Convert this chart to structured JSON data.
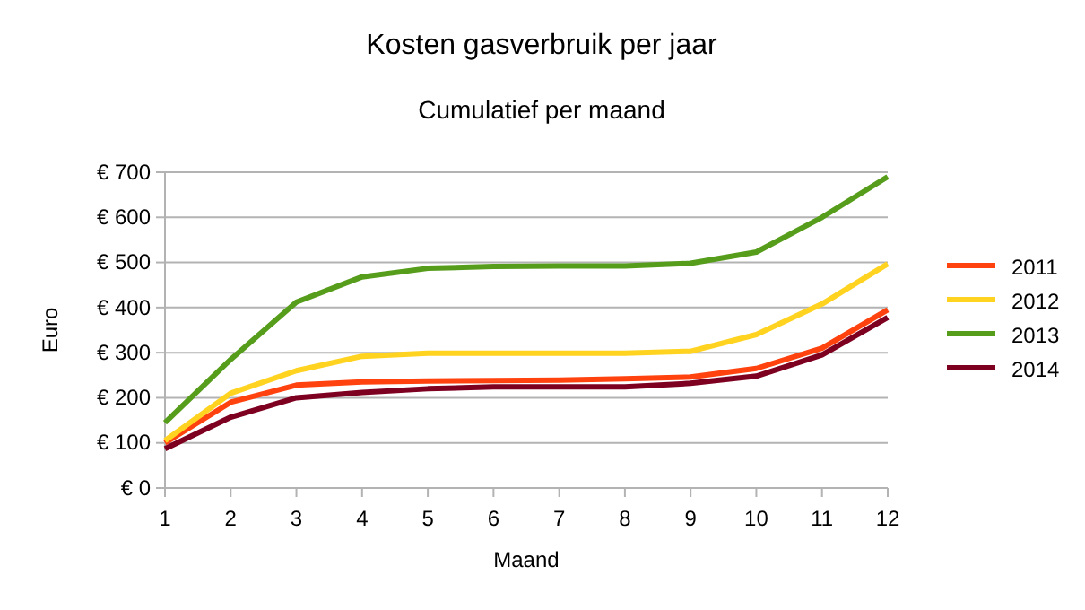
{
  "chart_data": {
    "type": "line",
    "title": "Kosten gasverbruik per jaar",
    "subtitle": "Cumulatief per maand",
    "xlabel": "Maand",
    "ylabel": "Euro",
    "x": [
      1,
      2,
      3,
      4,
      5,
      6,
      7,
      8,
      9,
      10,
      11,
      12
    ],
    "xlim": [
      1,
      12
    ],
    "xticks": [
      1,
      2,
      3,
      4,
      5,
      6,
      7,
      8,
      9,
      10,
      11,
      12
    ],
    "ylim": [
      0,
      700
    ],
    "yticks": [
      {
        "value": 0,
        "label": "€ 0"
      },
      {
        "value": 100,
        "label": "€ 100"
      },
      {
        "value": 200,
        "label": "€ 200"
      },
      {
        "value": 300,
        "label": "€ 300"
      },
      {
        "value": 400,
        "label": "€ 400"
      },
      {
        "value": 500,
        "label": "€ 500"
      },
      {
        "value": 600,
        "label": "€ 600"
      },
      {
        "value": 700,
        "label": "€ 700"
      }
    ],
    "grid": "y",
    "legend": "right",
    "marker": "none",
    "line_style": "solid",
    "series": [
      {
        "name": "2011",
        "color": "#ff420e",
        "values": [
          100,
          190,
          228,
          235,
          237,
          238,
          239,
          242,
          246,
          265,
          310,
          395
        ]
      },
      {
        "name": "2012",
        "color": "#ffd320",
        "values": [
          105,
          210,
          260,
          292,
          299,
          299,
          299,
          299,
          303,
          340,
          408,
          497
        ]
      },
      {
        "name": "2013",
        "color": "#579d1c",
        "values": [
          145,
          285,
          412,
          468,
          487,
          491,
          492,
          492,
          498,
          523,
          600,
          690
        ]
      },
      {
        "name": "2014",
        "color": "#7e0021",
        "values": [
          87,
          157,
          200,
          212,
          220,
          224,
          224,
          224,
          232,
          248,
          295,
          378
        ]
      }
    ]
  }
}
